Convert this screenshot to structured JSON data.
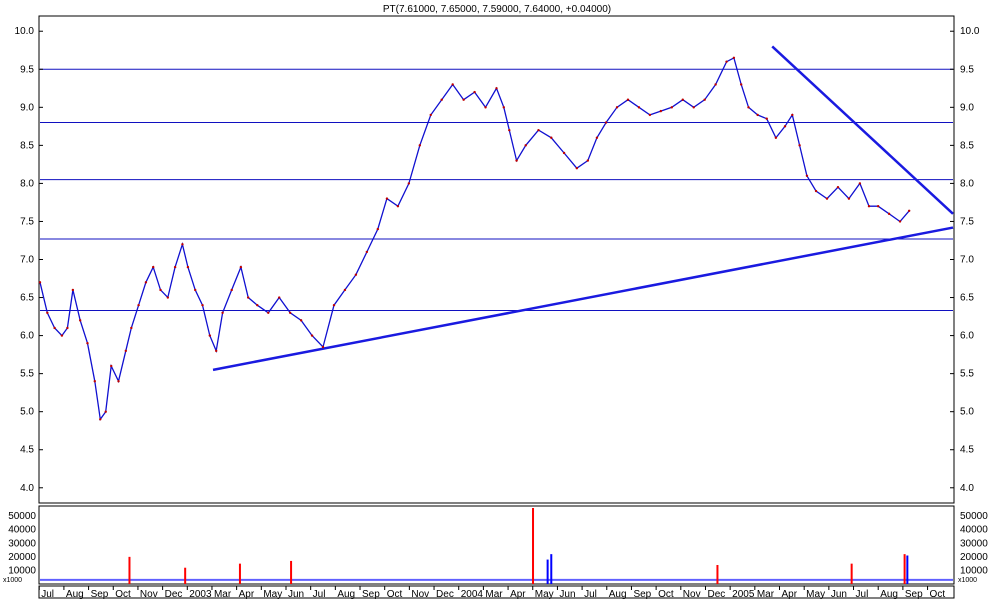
{
  "chart_data": {
    "type": "line",
    "title": "PT(7.61000, 7.65000, 7.59000, 7.64000, +0.04000)",
    "price_axis": {
      "ylim": [
        3.8,
        10.2
      ],
      "ticks": [
        "4.0",
        "4.5",
        "5.0",
        "5.5",
        "6.0",
        "6.5",
        "7.0",
        "7.5",
        "8.0",
        "8.5",
        "9.0",
        "9.5",
        "10.0"
      ]
    },
    "volume_axis": {
      "ylim": [
        0,
        56000
      ],
      "ticks": [
        "10000",
        "20000",
        "30000",
        "40000",
        "50000"
      ],
      "multiplier_label": "x1000"
    },
    "x_months": [
      "Jul",
      "Aug",
      "Sep",
      "Oct",
      "Nov",
      "Dec",
      "2003",
      "Mar",
      "Apr",
      "May",
      "Jun",
      "Jul",
      "Aug",
      "Sep",
      "Oct",
      "Nov",
      "Dec",
      "2004",
      "Mar",
      "Apr",
      "May",
      "Jun",
      "Jul",
      "Aug",
      "Sep",
      "Oct",
      "Nov",
      "Dec",
      "2005",
      "Mar",
      "Apr",
      "May",
      "Jun",
      "Jul",
      "Aug",
      "Sep",
      "Oct"
    ],
    "horizontal_levels": [
      9.5,
      8.8,
      8.05,
      7.27,
      6.33
    ],
    "support_line": {
      "start": {
        "x": 0.1895,
        "y": 5.55
      },
      "end": {
        "x": 1.0,
        "y": 7.42
      }
    },
    "resistance_line": {
      "start": {
        "x": 0.802,
        "y": 9.8
      },
      "end": {
        "x": 1.0,
        "y": 7.6
      }
    },
    "price_series": [
      {
        "x": 0.0,
        "y": 6.7
      },
      {
        "x": 0.008,
        "y": 6.3
      },
      {
        "x": 0.016,
        "y": 6.1
      },
      {
        "x": 0.024,
        "y": 6.0
      },
      {
        "x": 0.03,
        "y": 6.1
      },
      {
        "x": 0.036,
        "y": 6.6
      },
      {
        "x": 0.044,
        "y": 6.2
      },
      {
        "x": 0.052,
        "y": 5.9
      },
      {
        "x": 0.06,
        "y": 5.4
      },
      {
        "x": 0.066,
        "y": 4.9
      },
      {
        "x": 0.072,
        "y": 5.0
      },
      {
        "x": 0.078,
        "y": 5.6
      },
      {
        "x": 0.086,
        "y": 5.4
      },
      {
        "x": 0.094,
        "y": 5.8
      },
      {
        "x": 0.1,
        "y": 6.1
      },
      {
        "x": 0.108,
        "y": 6.4
      },
      {
        "x": 0.116,
        "y": 6.7
      },
      {
        "x": 0.124,
        "y": 6.9
      },
      {
        "x": 0.132,
        "y": 6.6
      },
      {
        "x": 0.14,
        "y": 6.5
      },
      {
        "x": 0.148,
        "y": 6.9
      },
      {
        "x": 0.156,
        "y": 7.2
      },
      {
        "x": 0.162,
        "y": 6.9
      },
      {
        "x": 0.17,
        "y": 6.6
      },
      {
        "x": 0.178,
        "y": 6.4
      },
      {
        "x": 0.186,
        "y": 6.0
      },
      {
        "x": 0.193,
        "y": 5.8
      },
      {
        "x": 0.2,
        "y": 6.3
      },
      {
        "x": 0.21,
        "y": 6.6
      },
      {
        "x": 0.22,
        "y": 6.9
      },
      {
        "x": 0.228,
        "y": 6.5
      },
      {
        "x": 0.238,
        "y": 6.4
      },
      {
        "x": 0.25,
        "y": 6.3
      },
      {
        "x": 0.262,
        "y": 6.5
      },
      {
        "x": 0.274,
        "y": 6.3
      },
      {
        "x": 0.286,
        "y": 6.2
      },
      {
        "x": 0.298,
        "y": 6.0
      },
      {
        "x": 0.31,
        "y": 5.85
      },
      {
        "x": 0.322,
        "y": 6.4
      },
      {
        "x": 0.334,
        "y": 6.6
      },
      {
        "x": 0.346,
        "y": 6.8
      },
      {
        "x": 0.358,
        "y": 7.1
      },
      {
        "x": 0.37,
        "y": 7.4
      },
      {
        "x": 0.38,
        "y": 7.8
      },
      {
        "x": 0.392,
        "y": 7.7
      },
      {
        "x": 0.404,
        "y": 8.0
      },
      {
        "x": 0.416,
        "y": 8.5
      },
      {
        "x": 0.428,
        "y": 8.9
      },
      {
        "x": 0.44,
        "y": 9.1
      },
      {
        "x": 0.452,
        "y": 9.3
      },
      {
        "x": 0.464,
        "y": 9.1
      },
      {
        "x": 0.476,
        "y": 9.2
      },
      {
        "x": 0.488,
        "y": 9.0
      },
      {
        "x": 0.5,
        "y": 9.25
      },
      {
        "x": 0.508,
        "y": 9.0
      },
      {
        "x": 0.514,
        "y": 8.7
      },
      {
        "x": 0.522,
        "y": 8.3
      },
      {
        "x": 0.532,
        "y": 8.5
      },
      {
        "x": 0.546,
        "y": 8.7
      },
      {
        "x": 0.56,
        "y": 8.6
      },
      {
        "x": 0.574,
        "y": 8.4
      },
      {
        "x": 0.588,
        "y": 8.2
      },
      {
        "x": 0.6,
        "y": 8.3
      },
      {
        "x": 0.61,
        "y": 8.6
      },
      {
        "x": 0.62,
        "y": 8.8
      },
      {
        "x": 0.632,
        "y": 9.0
      },
      {
        "x": 0.644,
        "y": 9.1
      },
      {
        "x": 0.656,
        "y": 9.0
      },
      {
        "x": 0.668,
        "y": 8.9
      },
      {
        "x": 0.68,
        "y": 8.95
      },
      {
        "x": 0.692,
        "y": 9.0
      },
      {
        "x": 0.704,
        "y": 9.1
      },
      {
        "x": 0.716,
        "y": 9.0
      },
      {
        "x": 0.728,
        "y": 9.1
      },
      {
        "x": 0.74,
        "y": 9.3
      },
      {
        "x": 0.752,
        "y": 9.6
      },
      {
        "x": 0.76,
        "y": 9.65
      },
      {
        "x": 0.768,
        "y": 9.3
      },
      {
        "x": 0.776,
        "y": 9.0
      },
      {
        "x": 0.786,
        "y": 8.9
      },
      {
        "x": 0.796,
        "y": 8.85
      },
      {
        "x": 0.806,
        "y": 8.6
      },
      {
        "x": 0.816,
        "y": 8.75
      },
      {
        "x": 0.824,
        "y": 8.9
      },
      {
        "x": 0.832,
        "y": 8.5
      },
      {
        "x": 0.84,
        "y": 8.1
      },
      {
        "x": 0.85,
        "y": 7.9
      },
      {
        "x": 0.862,
        "y": 7.8
      },
      {
        "x": 0.874,
        "y": 7.95
      },
      {
        "x": 0.886,
        "y": 7.8
      },
      {
        "x": 0.898,
        "y": 8.0
      },
      {
        "x": 0.908,
        "y": 7.7
      },
      {
        "x": 0.918,
        "y": 7.7
      },
      {
        "x": 0.93,
        "y": 7.6
      },
      {
        "x": 0.942,
        "y": 7.5
      },
      {
        "x": 0.952,
        "y": 7.64
      }
    ],
    "volume_series": [
      {
        "x": 0.098,
        "v": 20000,
        "color": "#ff0000"
      },
      {
        "x": 0.159,
        "v": 12000,
        "color": "#ff0000"
      },
      {
        "x": 0.219,
        "v": 15000,
        "color": "#ff0000"
      },
      {
        "x": 0.275,
        "v": 17000,
        "color": "#ff0000"
      },
      {
        "x": 0.54,
        "v": 56000,
        "color": "#ff0000"
      },
      {
        "x": 0.556,
        "v": 18000,
        "color": "#0000ff"
      },
      {
        "x": 0.56,
        "v": 22000,
        "color": "#0000ff"
      },
      {
        "x": 0.742,
        "v": 14000,
        "color": "#ff0000"
      },
      {
        "x": 0.889,
        "v": 15000,
        "color": "#ff0000"
      },
      {
        "x": 0.947,
        "v": 22000,
        "color": "#ff0000"
      },
      {
        "x": 0.95,
        "v": 21000,
        "color": "#0000ff"
      }
    ]
  }
}
